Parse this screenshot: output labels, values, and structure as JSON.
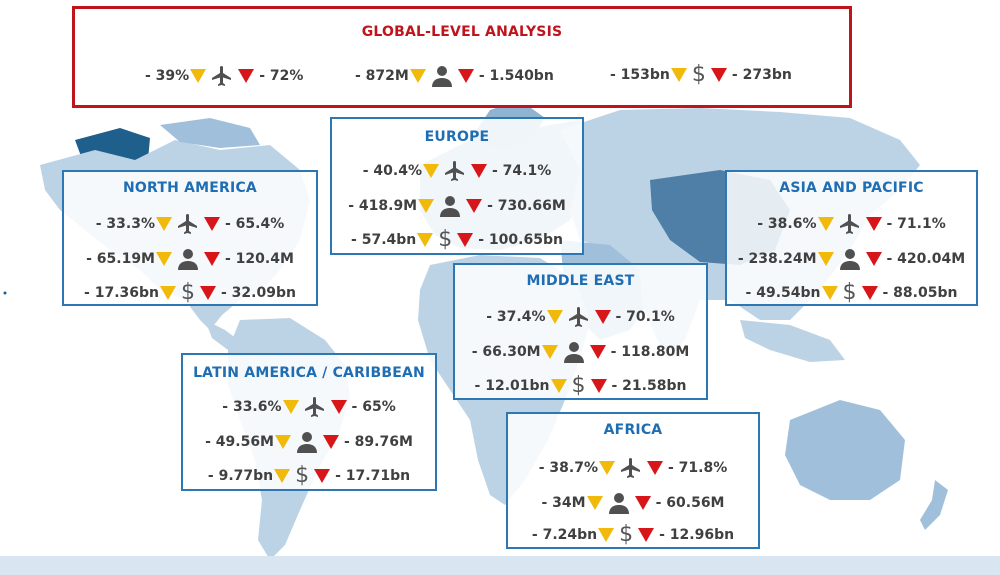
{
  "colors": {
    "ocean": "#ffffff",
    "land_light": "#bcd3e6",
    "land_mid": "#8fb4d2",
    "land_dark": "#1f5f8b",
    "decrease_minor": "#f1b90a",
    "decrease_major": "#d7161a",
    "region_border": "#2e77b5",
    "global_border": "#c0141d"
  },
  "icons": {
    "flights": "airplane-icon",
    "passengers": "person-icon",
    "revenue": "dollar-icon",
    "minor": "yellow-down-triangle-icon",
    "major": "red-down-triangle-icon"
  },
  "global": {
    "title": "GLOBAL-LEVEL ANALYSIS",
    "flights": {
      "low": "- 39%",
      "high": "- 72%"
    },
    "passengers": {
      "low": "- 872M",
      "high": "- 1.540bn"
    },
    "revenue": {
      "low": "- 153bn",
      "high": "- 273bn"
    }
  },
  "regions": {
    "europe": {
      "title": "EUROPE",
      "flights": {
        "low": "- 40.4%",
        "high": "- 74.1%"
      },
      "passengers": {
        "low": "- 418.9M",
        "high": "- 730.66M"
      },
      "revenue": {
        "low": "- 57.4bn",
        "high": "- 100.65bn"
      }
    },
    "north_america": {
      "title": "NORTH AMERICA",
      "flights": {
        "low": "- 33.3%",
        "high": "- 65.4%"
      },
      "passengers": {
        "low": "- 65.19M",
        "high": "- 120.4M"
      },
      "revenue": {
        "low": "- 17.36bn",
        "high": "- 32.09bn"
      }
    },
    "asia_pacific": {
      "title": "ASIA AND PACIFIC",
      "flights": {
        "low": "- 38.6%",
        "high": "- 71.1%"
      },
      "passengers": {
        "low": "- 238.24M",
        "high": "- 420.04M"
      },
      "revenue": {
        "low": "- 49.54bn",
        "high": "- 88.05bn"
      }
    },
    "middle_east": {
      "title": "MIDDLE EAST",
      "flights": {
        "low": "- 37.4%",
        "high": "- 70.1%"
      },
      "passengers": {
        "low": "- 66.30M",
        "high": "- 118.80M"
      },
      "revenue": {
        "low": "- 12.01bn",
        "high": "- 21.58bn"
      }
    },
    "latin_america": {
      "title": "LATIN AMERICA / CARIBBEAN",
      "flights": {
        "low": "- 33.6%",
        "high": "- 65%"
      },
      "passengers": {
        "low": "- 49.56M",
        "high": "- 89.76M"
      },
      "revenue": {
        "low": "- 9.77bn",
        "high": "- 17.71bn"
      }
    },
    "africa": {
      "title": "AFRICA",
      "flights": {
        "low": "- 38.7%",
        "high": "- 71.8%"
      },
      "passengers": {
        "low": "- 34M",
        "high": "- 60.56M"
      },
      "revenue": {
        "low": "- 7.24bn",
        "high": "- 12.96bn"
      }
    }
  }
}
